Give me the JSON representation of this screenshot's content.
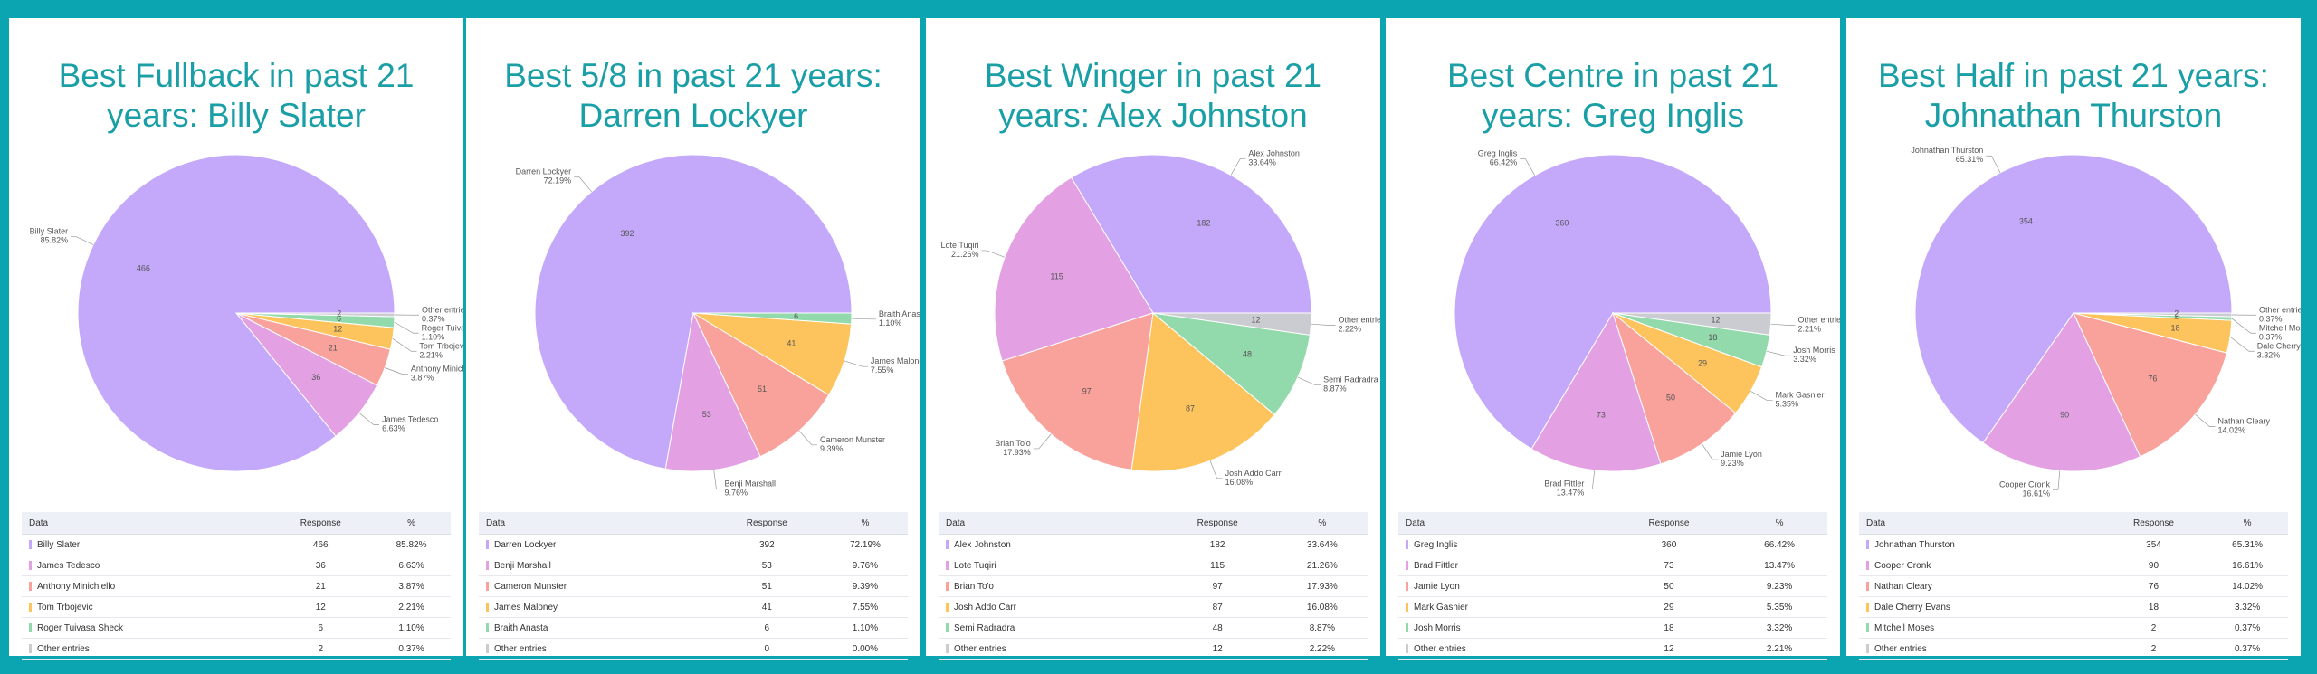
{
  "chart_data": [
    {
      "type": "pie",
      "title": "Best Fullback in past 21 years: Billy Slater",
      "categories": [
        "Billy Slater",
        "James Tedesco",
        "Anthony Minichiello",
        "Tom Trbojevic",
        "Roger Tuivasa Sheck",
        "Other entries"
      ],
      "values": [
        466,
        36,
        21,
        12,
        6,
        2
      ],
      "share_labels": [
        "85.82%",
        "6.63%",
        "3.87%",
        "2.21%",
        "1.10%",
        "0.37%"
      ],
      "colors": [
        "#c4a9fb",
        "#e3a1e4",
        "#f9a19b",
        "#fdc45d",
        "#92d9ab",
        "#cbcbd2"
      ],
      "table_columns": [
        "Data",
        "Response",
        "%"
      ]
    },
    {
      "type": "pie",
      "title": "Best 5/8 in past 21 years: Darren Lockyer",
      "categories": [
        "Darren Lockyer",
        "Benji Marshall",
        "Cameron Munster",
        "James Maloney",
        "Braith Anasta",
        "Other entries"
      ],
      "values": [
        392,
        53,
        51,
        41,
        6,
        0
      ],
      "share_labels": [
        "72.19%",
        "9.76%",
        "9.39%",
        "7.55%",
        "1.10%",
        "0.00%"
      ],
      "colors": [
        "#c4a9fb",
        "#e3a1e4",
        "#f9a19b",
        "#fdc45d",
        "#92d9ab",
        "#cbcbd2"
      ],
      "table_columns": [
        "Data",
        "Response",
        "%"
      ]
    },
    {
      "type": "pie",
      "title": "Best Winger in past 21 years: Alex Johnston",
      "categories": [
        "Alex Johnston",
        "Lote Tuqiri",
        "Brian To'o",
        "Josh Addo Carr",
        "Semi Radradra",
        "Other entries"
      ],
      "values": [
        182,
        115,
        97,
        87,
        48,
        12
      ],
      "share_labels": [
        "33.64%",
        "21.26%",
        "17.93%",
        "16.08%",
        "8.87%",
        "2.22%"
      ],
      "colors": [
        "#c4a9fb",
        "#e3a1e4",
        "#f9a19b",
        "#fdc45d",
        "#92d9ab",
        "#cbcbd2"
      ],
      "table_columns": [
        "Data",
        "Response",
        "%"
      ]
    },
    {
      "type": "pie",
      "title": "Best Centre in past 21 years: Greg Inglis",
      "categories": [
        "Greg Inglis",
        "Brad Fittler",
        "Jamie Lyon",
        "Mark Gasnier",
        "Josh Morris",
        "Other entries"
      ],
      "values": [
        360,
        73,
        50,
        29,
        18,
        12
      ],
      "share_labels": [
        "66.42%",
        "13.47%",
        "9.23%",
        "5.35%",
        "3.32%",
        "2.21%"
      ],
      "colors": [
        "#c4a9fb",
        "#e3a1e4",
        "#f9a19b",
        "#fdc45d",
        "#92d9ab",
        "#cbcbd2"
      ],
      "table_columns": [
        "Data",
        "Response",
        "%"
      ]
    },
    {
      "type": "pie",
      "title": "Best Half in past 21 years: Johnathan Thurston",
      "categories": [
        "Johnathan Thurston",
        "Cooper Cronk",
        "Nathan Cleary",
        "Dale Cherry Evans",
        "Mitchell Moses",
        "Other entries"
      ],
      "values": [
        354,
        90,
        76,
        18,
        2,
        2
      ],
      "share_labels": [
        "65.31%",
        "16.61%",
        "14.02%",
        "3.32%",
        "0.37%",
        "0.37%"
      ],
      "colors": [
        "#c4a9fb",
        "#e3a1e4",
        "#f9a19b",
        "#fdc45d",
        "#92d9ab",
        "#cbcbd2"
      ],
      "table_columns": [
        "Data",
        "Response",
        "%"
      ]
    }
  ]
}
